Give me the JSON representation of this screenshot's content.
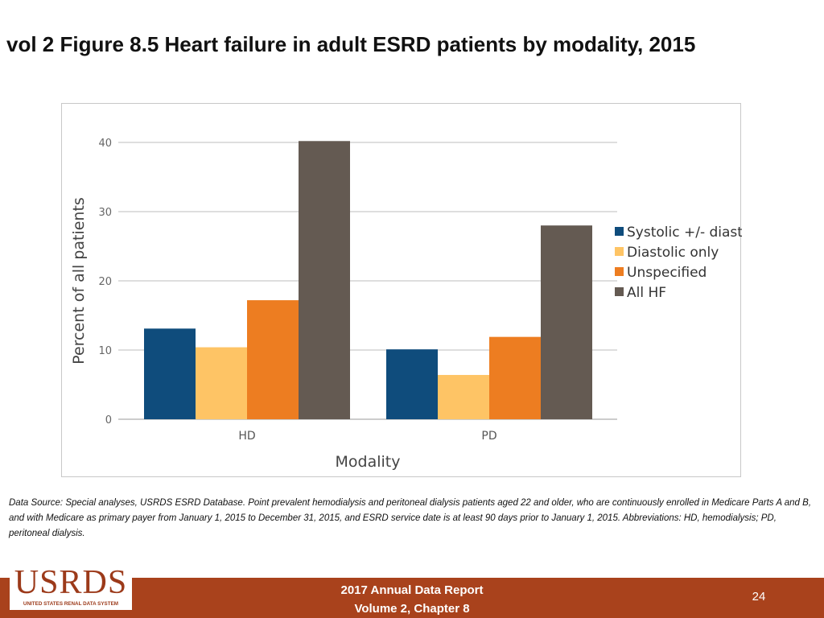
{
  "slide": {
    "title": "vol 2 Figure 8.5 Heart failure in adult ESRD patients by modality, 2015",
    "source_note": "Data Source: Special analyses, USRDS ESRD Database. Point prevalent hemodialysis and peritoneal dialysis patients aged 22 and older, who are continuously enrolled in Medicare Parts A and B, and with Medicare as primary payer from January 1, 2015 to December 31, 2015, and ESRD service date is at least 90 days prior to January 1, 2015. Abbreviations: HD, hemodialysis; PD, peritoneal dialysis."
  },
  "footer": {
    "line1": "2017 Annual Data Report",
    "line2": "Volume 2, Chapter 8",
    "page_number": "24",
    "logo_text": "USRDS",
    "logo_subtext": "UNITED STATES RENAL DATA SYSTEM",
    "bar_color": "#a9421c"
  },
  "chart_data": {
    "type": "bar",
    "title": "",
    "xlabel": "Modality",
    "ylabel": "Percent of all patients",
    "categories": [
      "HD",
      "PD"
    ],
    "series": [
      {
        "name": "Systolic +/- diastolic",
        "color": "#0f4c7c",
        "values": [
          13.1,
          10.1
        ]
      },
      {
        "name": "Diastolic only",
        "color": "#fec465",
        "values": [
          10.4,
          6.4
        ]
      },
      {
        "name": "Unspecified",
        "color": "#ed7d21",
        "values": [
          17.2,
          11.9
        ]
      },
      {
        "name": "All HF",
        "color": "#645a52",
        "values": [
          40.2,
          28.0
        ]
      }
    ],
    "ylim": [
      0,
      40
    ],
    "yticks": [
      0,
      10,
      20,
      30,
      40
    ],
    "grid": true,
    "legend_position": "right"
  }
}
